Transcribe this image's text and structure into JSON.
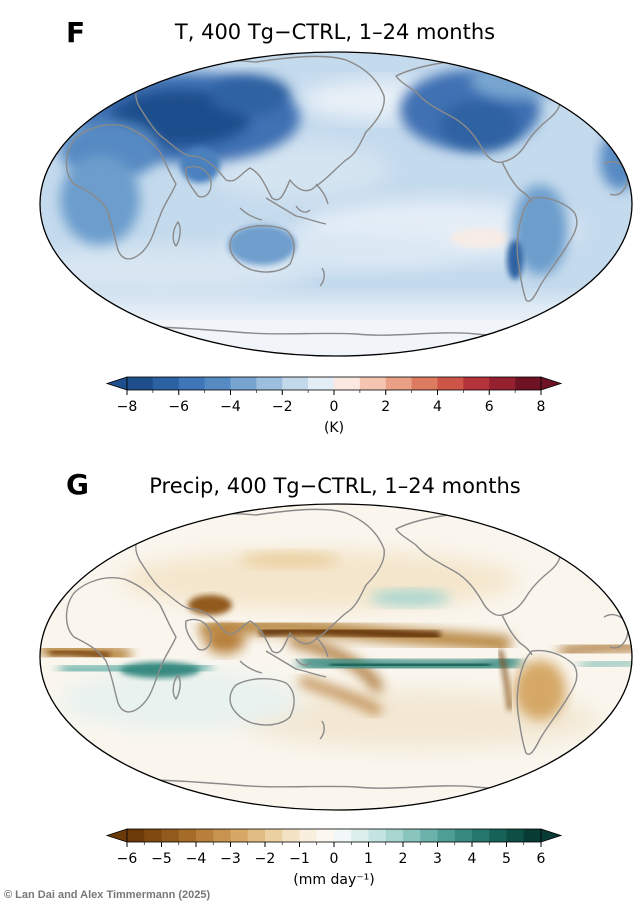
{
  "panels": [
    {
      "letter": "F",
      "title": "T, 400 Tg−CTRL, 1–24 months",
      "variable": "temperature anomaly",
      "colorbar": {
        "ticks": [
          "−8",
          "−6",
          "−4",
          "−2",
          "0",
          "2",
          "4",
          "6",
          "8"
        ],
        "tick_values": [
          -8,
          -6,
          -4,
          -2,
          0,
          2,
          4,
          6,
          8
        ],
        "range": [
          -8,
          8
        ],
        "levels": 16,
        "unit": "(K)",
        "extend": "both",
        "colors": [
          "#1f4e8c",
          "#2d62a2",
          "#3e76b7",
          "#568ac3",
          "#78a5d0",
          "#9dbfdf",
          "#c2d8eb",
          "#e3edf6",
          "#fbe8e0",
          "#f4c6b2",
          "#e9a084",
          "#dd7b61",
          "#cc5547",
          "#b5333a",
          "#95202f",
          "#6e1224"
        ]
      }
    },
    {
      "letter": "G",
      "title": "Precip, 400 Tg−CTRL, 1–24 months",
      "variable": "precipitation anomaly",
      "colorbar": {
        "ticks": [
          "−6",
          "−5",
          "−4",
          "−3",
          "−2",
          "−1",
          "0",
          "1",
          "2",
          "3",
          "4",
          "5",
          "6"
        ],
        "tick_values": [
          -6,
          -5,
          -4,
          -3,
          -2,
          -1,
          0,
          1,
          2,
          3,
          4,
          5,
          6
        ],
        "range": [
          -6,
          6
        ],
        "levels": 24,
        "unit": "(mm day⁻¹)",
        "extend": "both",
        "colors": [
          "#6b3a08",
          "#7e4a12",
          "#925a1c",
          "#a56c28",
          "#b77f3a",
          "#c7934f",
          "#d5a866",
          "#e1bc82",
          "#ebd0a2",
          "#f3e2c3",
          "#f8efdf",
          "#fcf8f1",
          "#f1f8f7",
          "#dcefed",
          "#c3e4e0",
          "#a7d6d0",
          "#8ac5bd",
          "#6cb2aa",
          "#4f9e96",
          "#388a81",
          "#25766c",
          "#176258",
          "#0d4e45",
          "#073b33"
        ]
      }
    }
  ],
  "credit": "© Lan Dai and Alex Timmermann (2025)",
  "colors": {
    "coastline": "#8a8a8a",
    "map_border": "#000000"
  }
}
